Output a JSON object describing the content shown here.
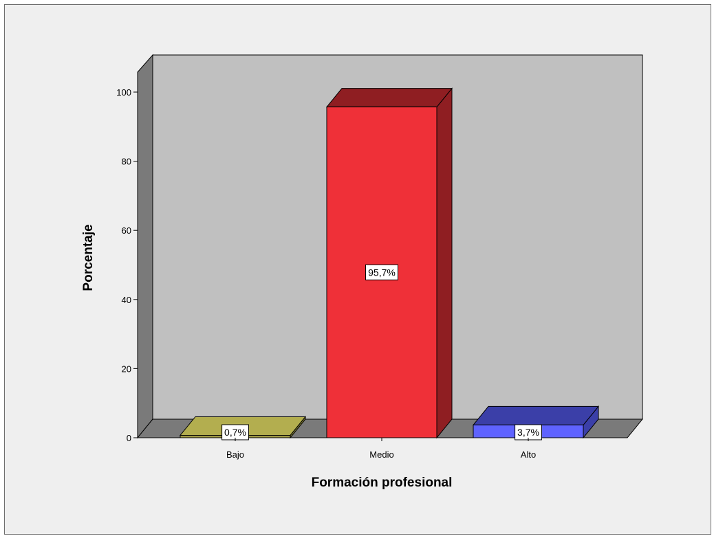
{
  "chart_data": {
    "type": "bar",
    "categories": [
      "Bajo",
      "Medio",
      "Alto"
    ],
    "values": [
      0.7,
      95.7,
      3.7
    ],
    "data_labels": [
      "0,7%",
      "95,7%",
      "3,7%"
    ],
    "xlabel": "Formación profesional",
    "ylabel": "Porcentaje",
    "ylim": [
      0,
      100
    ],
    "yticks": [
      0,
      20,
      40,
      60,
      80,
      100
    ],
    "style": "3d",
    "colors": {
      "Bajo": {
        "front": "#9f9a45",
        "top": "#b3ae4f",
        "side": "#7e7a35"
      },
      "Medio": {
        "front": "#ef3038",
        "top": "#8f1e22",
        "side": "#8f1e22"
      },
      "Alto": {
        "front": "#5f63ff",
        "top": "#3b3fa8",
        "side": "#3b3fa8"
      },
      "back_wall": "#c0c0c0",
      "floor": "#7a7a7a",
      "left_wall": "#7a7a7a"
    }
  }
}
